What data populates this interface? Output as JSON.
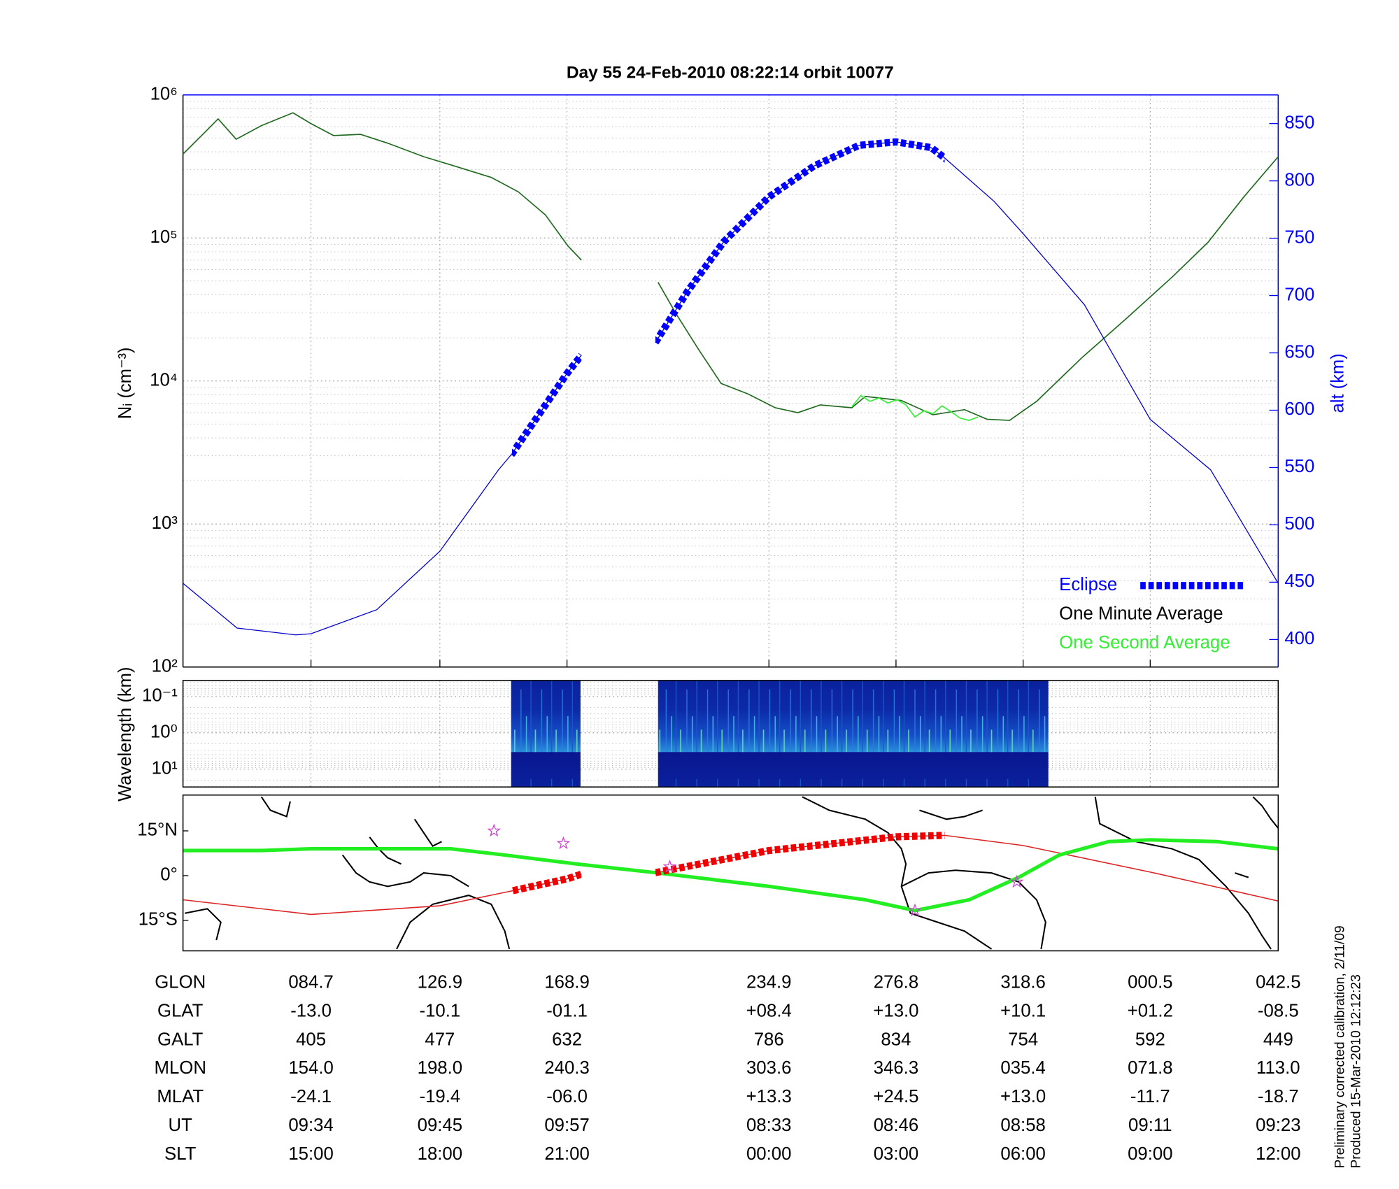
{
  "chart_data": [
    {
      "type": "line",
      "title": "Day 55  24-Feb-2010 08:22:14   orbit 10077",
      "ylabel": "Nᵢ (cm⁻³)",
      "y2label": "alt (km)",
      "log_y": true,
      "grid": true,
      "legend": "lower right",
      "xlim": [
        0,
        1215
      ],
      "xticks": [
        142,
        285,
        426,
        650,
        791,
        932,
        1073,
        1215
      ],
      "ylim": [
        100,
        1000000
      ],
      "yticks": [
        {
          "value": 100,
          "label": "10²"
        },
        {
          "value": 1000,
          "label": "10³"
        },
        {
          "value": 10000,
          "label": "10⁴"
        },
        {
          "value": 100000,
          "label": "10⁵"
        },
        {
          "value": 1000000,
          "label": "10⁶"
        }
      ],
      "y2lim": [
        376,
        875
      ],
      "y2ticks": [
        400,
        450,
        500,
        550,
        600,
        650,
        700,
        750,
        800,
        850
      ],
      "y2color": "#0000ff",
      "series": [
        {
          "name": "One Minute Average",
          "color": "#1f6a1f",
          "legend_color": "#000000",
          "x": [
            0,
            22,
            39,
            59,
            87,
            122,
            142,
            167,
            197,
            227,
            267,
            307,
            342,
            372,
            402,
            427,
            442,
            485,
            527,
            547,
            572,
            597,
            627,
            657,
            682,
            707,
            742,
            757,
            797,
            832,
            867,
            892,
            917,
            947,
            997,
            1047,
            1097,
            1137,
            1177,
            1215
          ],
          "values": [
            386000,
            530000,
            680000,
            490000,
            610000,
            750000,
            630000,
            520000,
            530000,
            460000,
            370000,
            310000,
            265000,
            210000,
            145000,
            88000,
            70000,
            null,
            49000,
            29500,
            16600,
            9600,
            8100,
            6500,
            6000,
            6800,
            6500,
            7800,
            7300,
            5800,
            6300,
            5400,
            5300,
            7200,
            14500,
            27500,
            53000,
            93000,
            194000,
            370000
          ]
        },
        {
          "name": "One Second Average",
          "color": "#33ee33",
          "x": [
            742,
            752,
            762,
            772,
            782,
            792,
            802,
            812,
            822,
            832,
            842,
            852,
            862,
            872,
            882
          ],
          "values": [
            6600,
            7900,
            7200,
            7600,
            7000,
            7400,
            6800,
            5600,
            6200,
            5900,
            6700,
            6100,
            5500,
            5300,
            5600
          ]
        },
        {
          "color": "#0000cc",
          "axis": "y2",
          "x": [
            0,
            60,
            125,
            142,
            215,
            285,
            350,
            365,
            426,
            442,
            485,
            524,
            560,
            600,
            650,
            700,
            750,
            791,
            830,
            845,
            900,
            932,
            1000,
            1073,
            1140,
            1215
          ],
          "values": [
            449,
            410,
            404,
            405,
            426,
            477,
            548,
            562,
            632,
            648,
            null,
            659,
            704,
            747,
            786,
            813,
            831,
            834,
            829,
            820,
            782,
            754,
            692,
            592,
            548,
            449
          ]
        }
      ],
      "eclipse": {
        "name": "Eclipse",
        "color": "#0000ff",
        "intervals": [
          [
            365,
            442
          ],
          [
            524,
            845
          ]
        ]
      }
    },
    {
      "type": "spectrogram",
      "ylabel": "Wavelength (km)",
      "log_y": true,
      "inverted": true,
      "grid": true,
      "xlim": [
        0,
        1215
      ],
      "xticks": [
        142,
        285,
        426,
        650,
        791,
        932,
        1073,
        1215
      ],
      "ylim": [
        0.036,
        31
      ],
      "yticks": [
        {
          "value": 0.1,
          "label": "10⁻¹"
        },
        {
          "value": 1,
          "label": "10⁰"
        },
        {
          "value": 10,
          "label": "10¹"
        }
      ],
      "intervals": [
        [
          364,
          441
        ],
        [
          527,
          960
        ]
      ]
    },
    {
      "type": "map",
      "xlim": [
        0,
        1215
      ],
      "ylim": [
        -25.2,
        27
      ],
      "yticks": [
        {
          "value": 15,
          "label": "15°N"
        },
        {
          "value": 0,
          "label": "0°"
        },
        {
          "value": -15,
          "label": "15°S"
        }
      ],
      "series": [
        {
          "color": "#dd2222",
          "x": [
            0,
            142,
            285,
            365,
            426,
            442,
            485,
            524,
            650,
            791,
            845,
            932,
            1073,
            1215
          ],
          "values": [
            -8.1,
            -13.0,
            -10.1,
            -5.1,
            -1.1,
            0.5,
            null,
            1,
            8.4,
            13.0,
            13.5,
            10.1,
            1.2,
            -8.5
          ]
        },
        {
          "color": "#22ee22",
          "x": [
            0,
            87,
            142,
            297,
            357,
            437,
            527,
            650,
            757,
            812,
            872,
            927,
            972,
            1027,
            1073,
            1147,
            1215
          ],
          "values": [
            8.4,
            8.4,
            9,
            9,
            6.9,
            3.9,
            0.9,
            -3.6,
            -8.1,
            -11.7,
            -8.1,
            -0.6,
            6.9,
            11.4,
            12,
            11.4,
            9
          ]
        }
      ],
      "eclipse": {
        "color": "#ee0000",
        "intervals": [
          [
            365,
            442
          ],
          [
            524,
            845
          ]
        ]
      },
      "markers": {
        "color": "#cc44cc",
        "x": [
          345,
          422,
          540,
          812,
          925
        ],
        "values": [
          15,
          10.8,
          3,
          -11.7,
          -2.1
        ]
      }
    }
  ],
  "ephemeris": {
    "rows": [
      {
        "label": "GLON",
        "values": [
          "084.7",
          "126.9",
          "168.9",
          "234.9",
          "276.8",
          "318.6",
          "000.5",
          "042.5"
        ]
      },
      {
        "label": "GLAT",
        "values": [
          "-13.0",
          "-10.1",
          "-01.1",
          "+08.4",
          "+13.0",
          "+10.1",
          "+01.2",
          "-08.5"
        ]
      },
      {
        "label": "GALT",
        "values": [
          "405",
          "477",
          "632",
          "786",
          "834",
          "754",
          "592",
          "449"
        ]
      },
      {
        "label": "MLON",
        "values": [
          "154.0",
          "198.0",
          "240.3",
          "303.6",
          "346.3",
          "035.4",
          "071.8",
          "113.0"
        ]
      },
      {
        "label": "MLAT",
        "values": [
          "-24.1",
          "-19.4",
          "-06.0",
          "+13.3",
          "+24.5",
          "+13.0",
          "-11.7",
          "-18.7"
        ]
      },
      {
        "label": "UT",
        "values": [
          "09:34",
          "09:45",
          "09:57",
          "08:33",
          "08:46",
          "08:58",
          "09:11",
          "09:23"
        ]
      },
      {
        "label": "SLT",
        "values": [
          "15:00",
          "18:00",
          "21:00",
          "00:00",
          "03:00",
          "06:00",
          "09:00",
          "12:00"
        ]
      }
    ]
  },
  "footnote": [
    "Preliminary corrected calibration, 2/11/09",
    "Produced 15-Mar-2010 12:12:23"
  ]
}
